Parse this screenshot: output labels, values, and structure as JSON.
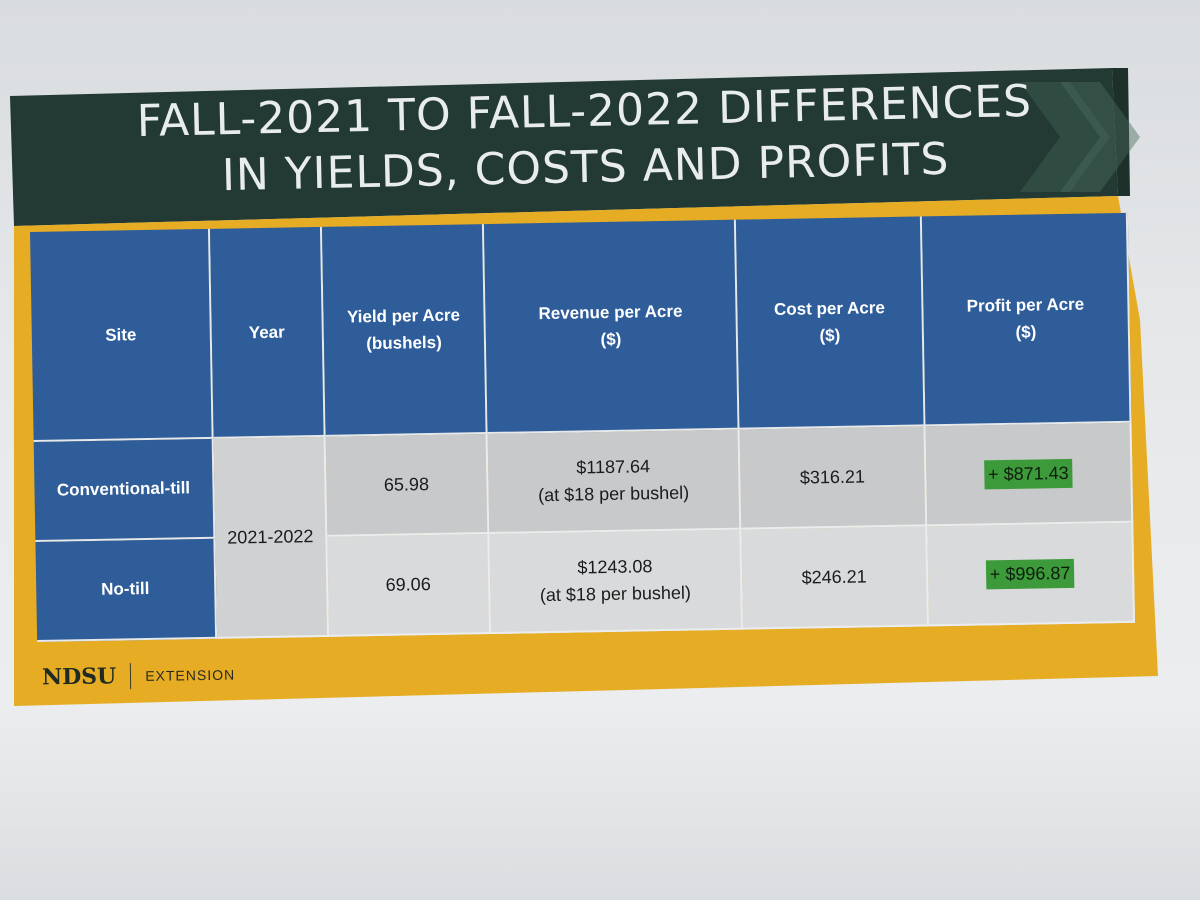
{
  "slide": {
    "title_line1": "FALL-2021 TO FALL-2022 DIFFERENCES",
    "title_line2": "IN YIELDS, COSTS AND PROFITS",
    "colors": {
      "header_band": "#223a33",
      "accent_band": "#e6ad24",
      "table_header": "#2f5d9a",
      "profit_highlight": "#3c9a3a"
    }
  },
  "table": {
    "headers": {
      "site": "Site",
      "year": "Year",
      "yield_l1": "Yield per Acre",
      "yield_l2": "(bushels)",
      "revenue_l1": "Revenue per Acre",
      "revenue_l2": "($)",
      "cost_l1": "Cost per Acre",
      "cost_l2": "($)",
      "profit_l1": "Profit per Acre",
      "profit_l2": "($)"
    },
    "year_span": "2021-2022",
    "rows": [
      {
        "site": "Conventional-till",
        "yield": "65.98",
        "revenue": "$1187.64",
        "revenue_note": "(at $18 per bushel)",
        "cost": "$316.21",
        "profit": "+ $871.43"
      },
      {
        "site": "No-till",
        "yield": "69.06",
        "revenue": "$1243.08",
        "revenue_note": "(at $18 per bushel)",
        "cost": "$246.21",
        "profit": "+ $996.87"
      }
    ]
  },
  "footer": {
    "logo": "NDSU",
    "label": "EXTENSION"
  }
}
